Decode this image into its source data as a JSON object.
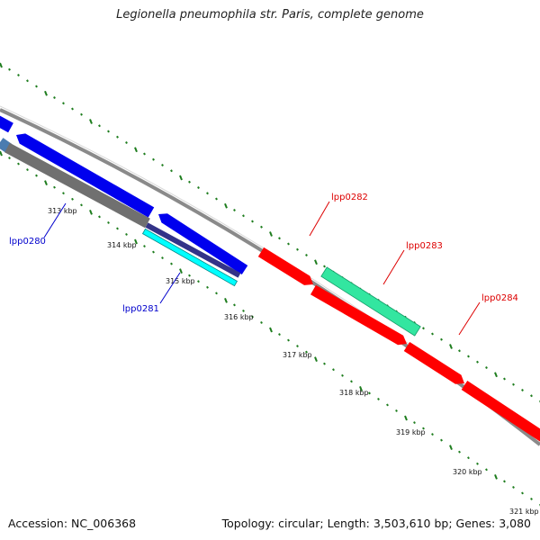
{
  "title": "Legionella pneumophila str. Paris, complete genome",
  "footer": {
    "accession": "Accession: NC_006368",
    "topology": "Topology: circular; Length: 3,503,610 bp; Genes: 3,080"
  },
  "colors": {
    "backbone": "#8a8a8a",
    "tick": "#1e7d1e",
    "forward_gene": "#ff0000",
    "reverse_gene": "#0000ee",
    "cds_green": "#33e6a0",
    "cyan_feature": "#00ffff",
    "gray_feature": "#707070",
    "dark_feature": "#333388",
    "label_blue": "#0000cc",
    "label_red": "#dd0000"
  },
  "scale_labels": [
    "313 kbp",
    "314 kbp",
    "315 kbp",
    "316 kbp",
    "317 kbp",
    "318 kbp",
    "319 kbp",
    "320 kbp",
    "321 kbp"
  ],
  "gene_labels": [
    {
      "text": "lpp0280",
      "strand": "reverse"
    },
    {
      "text": "lpp0281",
      "strand": "reverse"
    },
    {
      "text": "lpp0282",
      "strand": "forward"
    },
    {
      "text": "lpp0283",
      "strand": "forward"
    },
    {
      "text": "lpp0284",
      "strand": "forward"
    }
  ]
}
